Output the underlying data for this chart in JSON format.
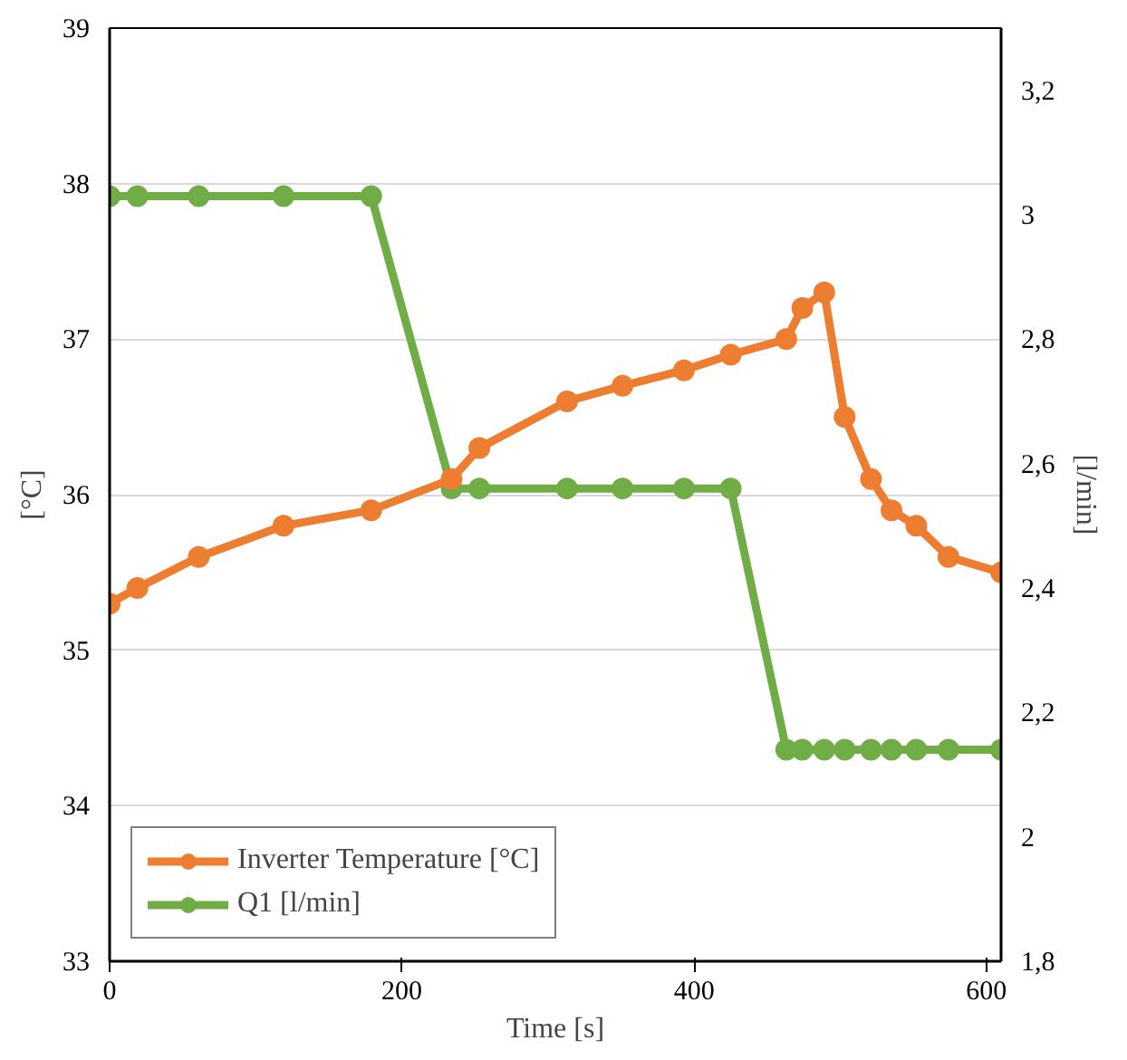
{
  "chart_data": {
    "type": "line",
    "xlabel": "Time [s]",
    "ylabel": "[°C]",
    "y2label": "[l/min]",
    "x": [
      0,
      19,
      61,
      119,
      179,
      234,
      253,
      313,
      351,
      393,
      425,
      463,
      474,
      489,
      503,
      521,
      535,
      552,
      574,
      610
    ],
    "series": [
      {
        "name": "Inverter Temperature [°C]",
        "color": "#ed7d31",
        "values": [
          35.3,
          35.4,
          35.6,
          35.8,
          35.9,
          36.1,
          36.3,
          36.6,
          36.7,
          36.8,
          36.9,
          37.0,
          37.2,
          37.3,
          36.5,
          36.1,
          35.9,
          35.8,
          35.6,
          35.5
        ]
      },
      {
        "name": "Q1 [l/min]",
        "color": "#70ad47",
        "axis": "y2",
        "values": [
          3.03,
          3.03,
          3.03,
          3.03,
          3.03,
          2.56,
          2.56,
          2.56,
          2.56,
          2.56,
          2.56,
          2.14,
          2.14,
          2.14,
          2.14,
          2.14,
          2.14,
          2.14,
          2.14,
          2.14
        ]
      }
    ],
    "xlim": [
      0,
      610
    ],
    "xticks": [
      0,
      200,
      400,
      600
    ],
    "ylim": [
      33,
      39
    ],
    "yticks": [
      33,
      34,
      35,
      36,
      37,
      38,
      39
    ],
    "y2lim": [
      1.8,
      3.3
    ],
    "y2ticks": [
      {
        "value": 1.8,
        "label": "1,8"
      },
      {
        "value": 2,
        "label": "2"
      },
      {
        "value": 2.2,
        "label": "2,2"
      },
      {
        "value": 2.4,
        "label": "2,4"
      },
      {
        "value": 2.6,
        "label": "2,6"
      },
      {
        "value": 2.8,
        "label": "2,8"
      },
      {
        "value": 3,
        "label": "3"
      },
      {
        "value": 3.2,
        "label": "3,2"
      }
    ],
    "grid": "y",
    "legend": "bottom left",
    "marker": "circle",
    "line_style": "solid"
  }
}
